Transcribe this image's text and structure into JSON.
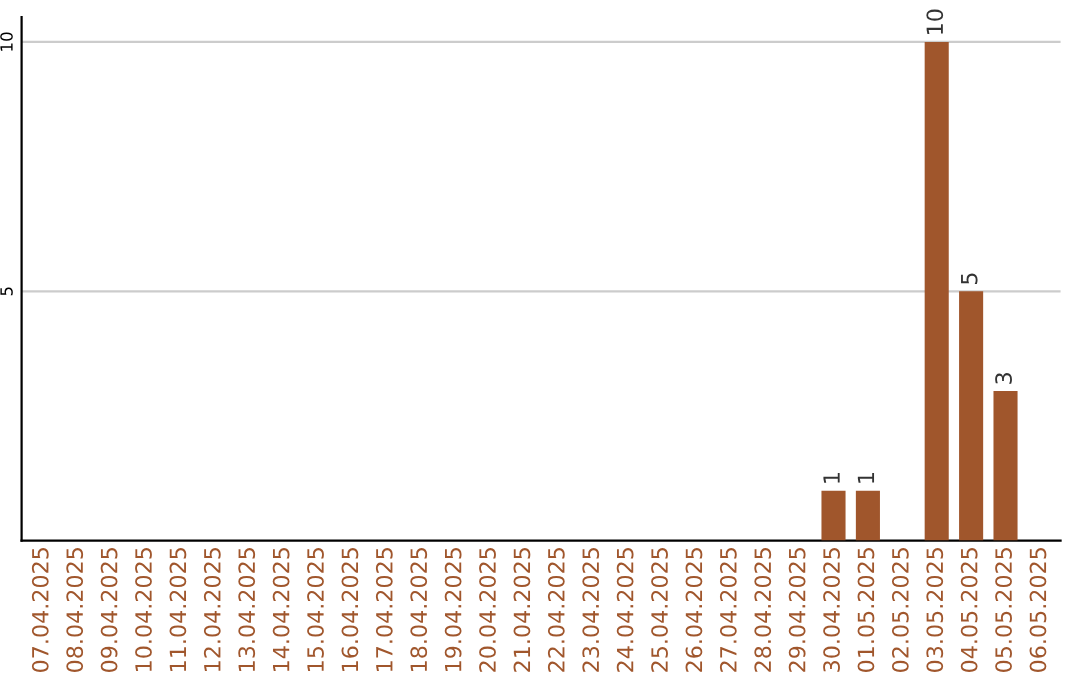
{
  "chart_data": {
    "type": "bar",
    "categories": [
      "07.04.2025",
      "08.04.2025",
      "09.04.2025",
      "10.04.2025",
      "11.04.2025",
      "12.04.2025",
      "13.04.2025",
      "14.04.2025",
      "15.04.2025",
      "16.04.2025",
      "17.04.2025",
      "18.04.2025",
      "19.04.2025",
      "20.04.2025",
      "21.04.2025",
      "22.04.2025",
      "23.04.2025",
      "24.04.2025",
      "25.04.2025",
      "26.04.2025",
      "27.04.2025",
      "28.04.2025",
      "29.04.2025",
      "30.04.2025",
      "01.05.2025",
      "02.05.2025",
      "03.05.2025",
      "04.05.2025",
      "05.05.2025",
      "06.05.2025"
    ],
    "values": [
      0,
      0,
      0,
      0,
      0,
      0,
      0,
      0,
      0,
      0,
      0,
      0,
      0,
      0,
      0,
      0,
      0,
      0,
      0,
      0,
      0,
      0,
      0,
      1,
      1,
      0,
      10,
      5,
      3,
      0
    ],
    "value_labels": [
      null,
      null,
      null,
      null,
      null,
      null,
      null,
      null,
      null,
      null,
      null,
      null,
      null,
      null,
      null,
      null,
      null,
      null,
      null,
      null,
      null,
      null,
      null,
      "1",
      "1",
      null,
      "10",
      "5",
      "3",
      null
    ],
    "color": "#a0562c",
    "ylim": [
      0,
      10.5
    ],
    "yticks": [
      5,
      10
    ],
    "grid": "y"
  }
}
